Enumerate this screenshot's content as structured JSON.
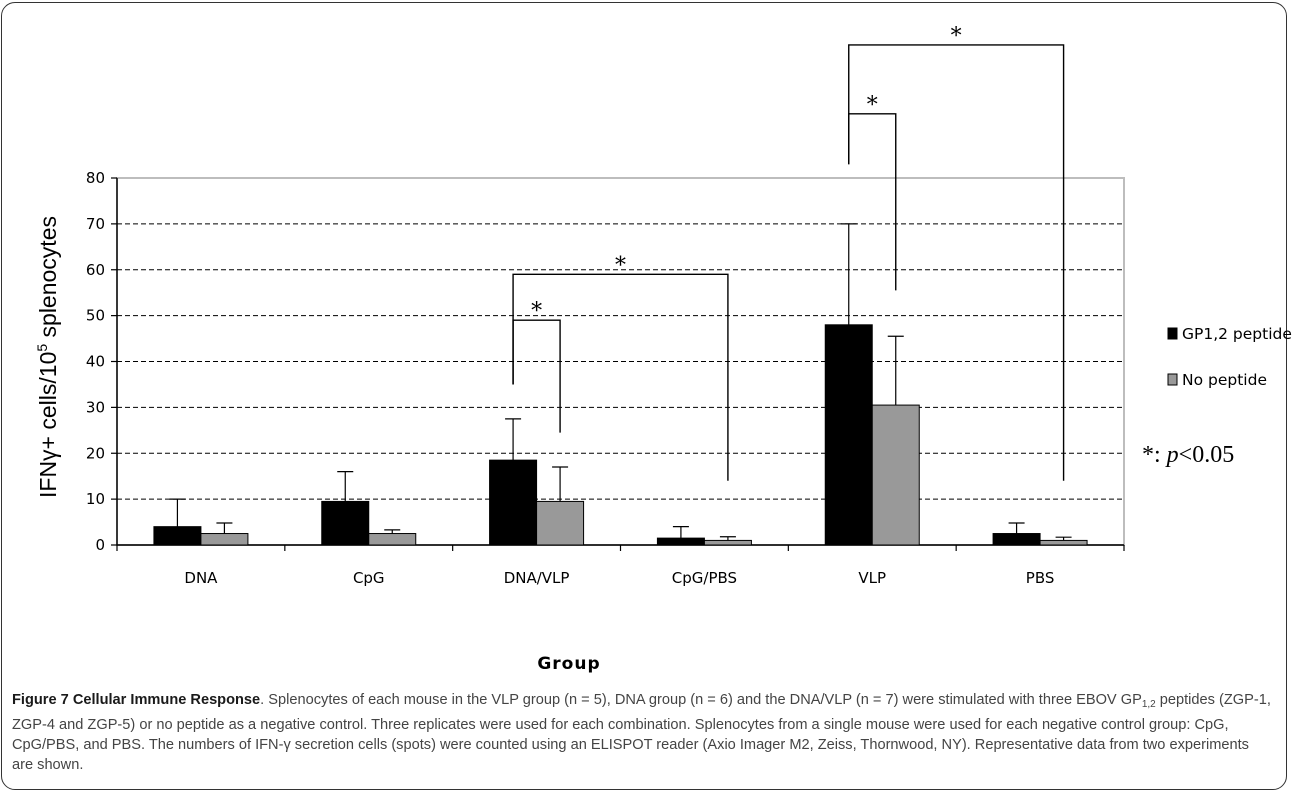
{
  "chart_data": {
    "type": "bar",
    "categories": [
      "DNA",
      "CpG",
      "DNA/VLP",
      "CpG/PBS",
      "VLP",
      "PBS"
    ],
    "series": [
      {
        "name": "GP1,2 peptide",
        "color": "#000000",
        "values": [
          4,
          9.5,
          18.5,
          1.5,
          48,
          2.5
        ],
        "errors": [
          6,
          6.5,
          9,
          2.5,
          22,
          2.3
        ]
      },
      {
        "name": "No peptide",
        "color": "#999999",
        "values": [
          2.5,
          2.5,
          9.5,
          1,
          30.5,
          1
        ],
        "errors": [
          2.3,
          0.8,
          7.5,
          0.8,
          15,
          0.7
        ]
      }
    ],
    "ylabel_main": "IFNγ+ cells/10",
    "ylabel_sup": "5",
    "ylabel_tail": " splenocytes",
    "xlabel": "Group",
    "ylim": [
      0,
      80
    ],
    "yticks": [
      0,
      10,
      20,
      30,
      40,
      50,
      60,
      70,
      80
    ],
    "grid": "dashed horizontal",
    "legend_position": "right",
    "significance": [
      {
        "from": "DNA/VLP",
        "to": "DNA/VLP",
        "label": "*"
      },
      {
        "from": "DNA/VLP",
        "to": "CpG/PBS",
        "label": "*"
      },
      {
        "from": "VLP",
        "to": "VLP",
        "label": "*"
      },
      {
        "from": "VLP",
        "to": "PBS",
        "label": "*"
      }
    ],
    "p_note_symbol": "*: ",
    "p_note_italic": "p",
    "p_note_tail": "<0.05"
  },
  "caption": {
    "figure_label": "Figure 7 Cellular Immune Response",
    "text_1": ". Splenocytes of each mouse in the VLP group (n = 5), DNA group (n = 6) and the DNA/VLP (n = 7) were stimulated with three EBOV GP",
    "sub": "1,2",
    "text_2": " peptides (ZGP-1, ZGP-4 and ZGP-5) or no peptide as a negative control. Three replicates were used for each combination. Splenocytes from a single mouse were used for each negative control group: CpG, CpG/PBS, and PBS. The numbers of IFN-γ secretion cells (spots) were counted using an ELISPOT reader (Axio Imager M2, Zeiss, Thornwood, NY). Representative data from two experiments are shown."
  }
}
